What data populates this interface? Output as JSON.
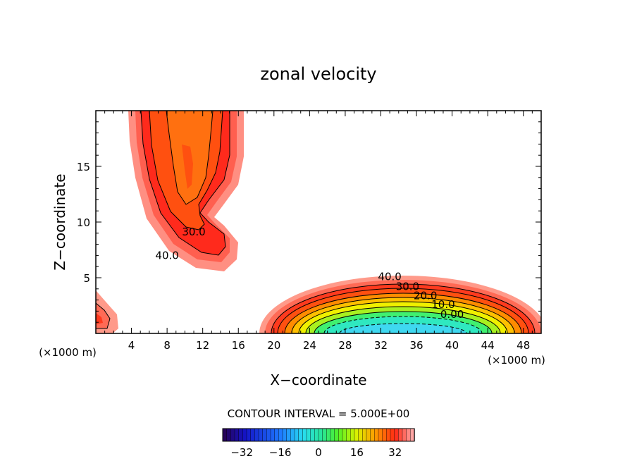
{
  "chart_data": {
    "type": "contour",
    "title": "zonal velocity",
    "xlabel": "X−coordinate",
    "ylabel": "Z−coordinate",
    "x_unit_left": "(×1000 m)",
    "x_unit_right": "(×1000 m)",
    "xlim": [
      0,
      50
    ],
    "ylim": [
      0,
      20
    ],
    "x_ticks": [
      4,
      8,
      12,
      16,
      20,
      24,
      28,
      32,
      36,
      40,
      44,
      48
    ],
    "y_ticks": [
      5,
      10,
      15
    ],
    "contour_interval_text": "CONTOUR INTERVAL = 5.000E+00",
    "contour_labels": [
      {
        "text": "30.0",
        "x": 11.0,
        "z": 9.1
      },
      {
        "text": "40.0",
        "x": 8.0,
        "z": 7.0
      },
      {
        "text": "40.0",
        "x": 33.0,
        "z": 5.1
      },
      {
        "text": "30.0",
        "x": 35.0,
        "z": 4.2
      },
      {
        "text": "20.0",
        "x": 37.0,
        "z": 3.4
      },
      {
        "text": "10.0",
        "x": 39.0,
        "z": 2.6
      },
      {
        "text": "0.00",
        "x": 40.0,
        "z": 1.7
      }
    ],
    "colorbar": {
      "range": [
        -40,
        40
      ],
      "tick_labels": [
        "−32",
        "−16",
        "0",
        "16",
        "32"
      ],
      "tick_values": [
        -32,
        -16,
        0,
        16,
        32
      ]
    },
    "colors": {
      "c_lt_neg": "#3fd8f0",
      "c0": "#2fe8c0",
      "c5": "#40f070",
      "c10": "#a8f020",
      "c15": "#f0f000",
      "c20": "#ffc000",
      "c25": "#ff8c00",
      "c30": "#ff5010",
      "c35": "#ff3a1e",
      "c40": "#ff6a55",
      "c45": "#ff9a8a",
      "jet_core": "#ff7010",
      "jet_inner": "#ff5010",
      "jet_mid": "#ff2a1c",
      "jet_outer": "#ff5f4f",
      "jet_edge": "#ff8f82"
    }
  }
}
